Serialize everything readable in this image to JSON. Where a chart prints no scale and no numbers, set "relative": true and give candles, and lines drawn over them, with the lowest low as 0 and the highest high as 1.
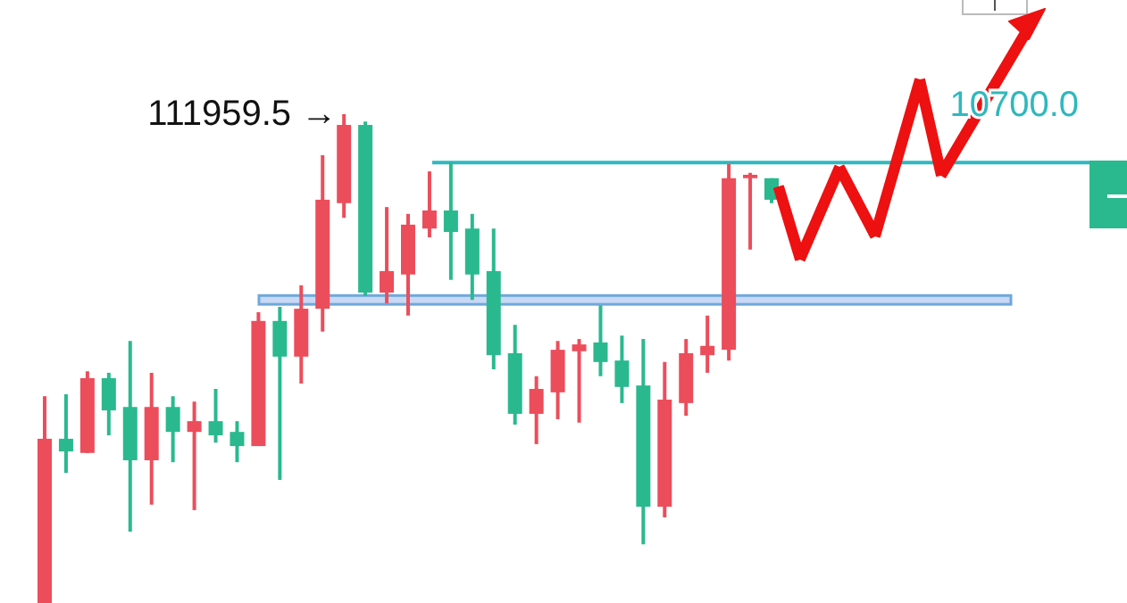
{
  "chart_data": {
    "type": "candlestick",
    "relative": true,
    "categories": [
      null,
      null,
      null,
      null,
      null,
      null,
      null,
      null,
      null,
      null,
      null,
      null,
      null,
      null,
      null,
      null,
      null,
      null,
      null,
      null,
      null,
      null,
      null,
      null,
      null,
      null,
      null,
      null,
      null,
      null,
      null,
      null,
      null,
      null,
      null
    ],
    "ohlc": [
      [
        0,
        0.423,
        0,
        0.336
      ],
      [
        0.336,
        0.427,
        0.266,
        0.31
      ],
      [
        0.307,
        0.474,
        0.307,
        0.46
      ],
      [
        0.46,
        0.471,
        0.343,
        0.394
      ],
      [
        0.401,
        0.536,
        0.146,
        0.292
      ],
      [
        0.292,
        0.471,
        0.201,
        0.401
      ],
      [
        0.401,
        0.423,
        0.288,
        0.35
      ],
      [
        0.35,
        0.412,
        0.19,
        0.372
      ],
      [
        0.372,
        0.438,
        0.328,
        0.343
      ],
      [
        0.35,
        0.372,
        0.288,
        0.321
      ],
      [
        0.321,
        0.595,
        0.321,
        0.577
      ],
      [
        0.577,
        0.606,
        0.252,
        0.504
      ],
      [
        0.504,
        0.65,
        0.449,
        0.602
      ],
      [
        0.602,
        0.916,
        0.555,
        0.825
      ],
      [
        0.818,
        1,
        0.788,
        0.978
      ],
      [
        0.978,
        0.985,
        0.628,
        0.635
      ],
      [
        0.635,
        0.81,
        0.613,
        0.679
      ],
      [
        0.672,
        0.796,
        0.588,
        0.774
      ],
      [
        0.766,
        0.883,
        0.748,
        0.803
      ],
      [
        0.803,
        0.901,
        0.661,
        0.759
      ],
      [
        0.766,
        0.796,
        0.62,
        0.672
      ],
      [
        0.679,
        0.766,
        0.478,
        0.507
      ],
      [
        0.511,
        0.569,
        0.365,
        0.387
      ],
      [
        0.387,
        0.464,
        0.325,
        0.438
      ],
      [
        0.431,
        0.536,
        0.376,
        0.518
      ],
      [
        0.515,
        0.54,
        0.369,
        0.529
      ],
      [
        0.533,
        0.609,
        0.464,
        0.493
      ],
      [
        0.496,
        0.547,
        0.409,
        0.442
      ],
      [
        0.445,
        0.54,
        0.12,
        0.197
      ],
      [
        0.197,
        0.493,
        0.175,
        0.416
      ],
      [
        0.409,
        0.54,
        0.383,
        0.511
      ],
      [
        0.507,
        0.588,
        0.471,
        0.526
      ],
      [
        0.518,
        0.898,
        0.496,
        0.869
      ],
      [
        0.869,
        0.88,
        0.723,
        0.876
      ],
      [
        0.869,
        0.869,
        0.818,
        0.825
      ]
    ],
    "colors": [
      "#ec4d5b",
      "#2ab98f",
      "#ec4d5b",
      "#2ab98f",
      "#2ab98f",
      "#ec4d5b",
      "#2ab98f",
      "#ec4d5b",
      "#2ab98f",
      "#2ab98f",
      "#ec4d5b",
      "#2ab98f",
      "#ec4d5b",
      "#ec4d5b",
      "#ec4d5b",
      "#2ab98f",
      "#ec4d5b",
      "#ec4d5b",
      "#ec4d5b",
      "#2ab98f",
      "#2ab98f",
      "#2ab98f",
      "#2ab98f",
      "#ec4d5b",
      "#ec4d5b",
      "#ec4d5b",
      "#2ab98f",
      "#2ab98f",
      "#2ab98f",
      "#ec4d5b",
      "#ec4d5b",
      "#ec4d5b",
      "#ec4d5b",
      "#ec4d5b",
      "#2ab98f"
    ],
    "ref_lines": [
      {
        "axis": "y",
        "value": 0.901,
        "color": "#2fb8bd"
      }
    ],
    "bands": [
      {
        "axis": "y",
        "from": 0.611,
        "to": 0.629,
        "color": "#6fa8dc"
      }
    ],
    "annotations": [
      "111959.5 →",
      "10700.0"
    ]
  }
}
